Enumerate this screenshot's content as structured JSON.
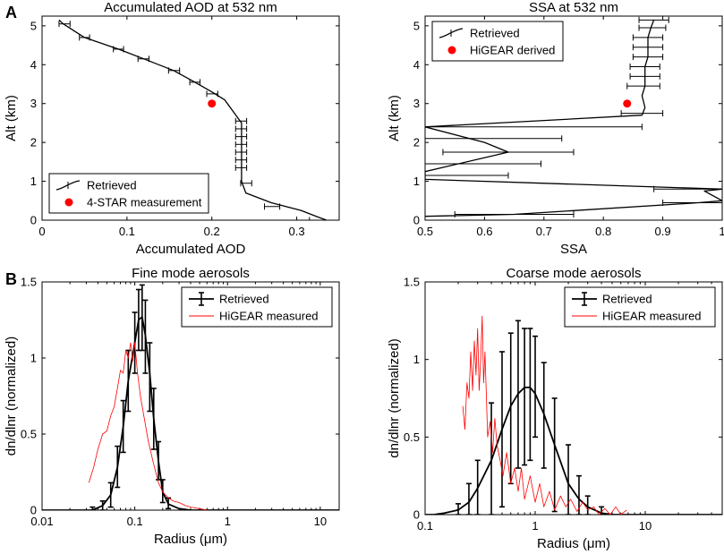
{
  "figure_labels": {
    "a": "A",
    "b": "B"
  },
  "colors": {
    "retrieved": "#000000",
    "measured": "#ff0000"
  },
  "chart_data": [
    {
      "id": "aod",
      "type": "line",
      "title": "Accumulated AOD at 532 nm",
      "xlabel": "Accumulated AOD",
      "ylabel": "Alt (km)",
      "xscale": "linear",
      "xlim": [
        0,
        0.35
      ],
      "ylim": [
        0,
        5.25
      ],
      "xticks": [
        0,
        0.1,
        0.2,
        0.3
      ],
      "xtick_labels": [
        "0",
        "0.1",
        "0.2",
        "0.3"
      ],
      "yticks": [
        0,
        1,
        2,
        3,
        4,
        5
      ],
      "ytick_labels": [
        "0",
        "1",
        "2",
        "3",
        "4",
        "5"
      ],
      "legend": {
        "position": "bottom-left",
        "entries": [
          "Retrieved",
          "4-STAR measurement"
        ]
      },
      "series": [
        {
          "name": "Retrieved",
          "kind": "line-hbars",
          "color": "#000000",
          "x": [
            0.02,
            0.025,
            0.05,
            0.09,
            0.12,
            0.155,
            0.18,
            0.2,
            0.215,
            0.225,
            0.235,
            0.235,
            0.235,
            0.235,
            0.235,
            0.235,
            0.24,
            0.27,
            0.305,
            0.325,
            0.335
          ],
          "y": [
            5.15,
            5.05,
            4.7,
            4.4,
            4.15,
            3.85,
            3.55,
            3.3,
            3.1,
            2.8,
            2.5,
            2.2,
            1.9,
            1.6,
            1.3,
            1.0,
            0.7,
            0.45,
            0.25,
            0.08,
            0.0
          ],
          "err_x": [
            [
              0.02,
              0.033
            ],
            [
              0.044,
              0.056
            ],
            [
              0.084,
              0.096
            ],
            [
              0.113,
              0.126
            ],
            [
              0.149,
              0.162
            ],
            [
              0.174,
              0.186
            ],
            [
              0.194,
              0.207
            ],
            [
              0.228,
              0.241
            ],
            [
              0.228,
              0.241
            ],
            [
              0.228,
              0.241
            ],
            [
              0.228,
              0.241
            ],
            [
              0.228,
              0.241
            ],
            [
              0.228,
              0.241
            ],
            [
              0.228,
              0.241
            ],
            [
              0.234,
              0.247
            ],
            [
              0.262,
              0.28
            ],
            [
              0.315,
              0.35
            ]
          ],
          "err_y": [
            5.05,
            4.7,
            4.4,
            4.15,
            3.85,
            3.55,
            3.25,
            2.55,
            2.35,
            2.15,
            1.95,
            1.75,
            1.55,
            1.35,
            0.95,
            0.35,
            0.0
          ]
        },
        {
          "name": "4-STAR measurement",
          "kind": "point",
          "color": "#ff0000",
          "x": [
            0.2
          ],
          "y": [
            3.0
          ]
        }
      ]
    },
    {
      "id": "ssa",
      "type": "line",
      "title": "SSA at 532 nm",
      "xlabel": "SSA",
      "ylabel": "Alt (km)",
      "xscale": "linear",
      "xlim": [
        0.5,
        1.0
      ],
      "ylim": [
        0,
        5.25
      ],
      "xticks": [
        0.5,
        0.6,
        0.7,
        0.8,
        0.9,
        1.0
      ],
      "xtick_labels": [
        "0.5",
        "0.6",
        "0.7",
        "0.8",
        "0.9",
        "1"
      ],
      "yticks": [
        0,
        1,
        2,
        3,
        4,
        5
      ],
      "ytick_labels": [
        "0",
        "1",
        "2",
        "3",
        "4",
        "5"
      ],
      "legend": {
        "position": "top-left",
        "entries": [
          "Retrieved",
          "HiGEAR derived"
        ]
      },
      "series": [
        {
          "name": "Retrieved",
          "kind": "line-hbars",
          "color": "#000000",
          "x": [
            0.885,
            0.88,
            0.875,
            0.875,
            0.875,
            0.87,
            0.87,
            0.87,
            0.865,
            0.87,
            0.865,
            0.5,
            0.6,
            0.64,
            0.5,
            0.5,
            0.5,
            1.0,
            0.97,
            1.0,
            0.96,
            0.65,
            0.5
          ],
          "y": [
            5.15,
            4.95,
            4.7,
            4.45,
            4.2,
            3.95,
            3.7,
            3.45,
            3.2,
            2.9,
            2.7,
            2.4,
            2.0,
            1.75,
            1.25,
            1.1,
            1.05,
            0.8,
            0.75,
            0.5,
            0.45,
            0.15,
            0.1
          ],
          "err_x": [
            [
              0.86,
              0.91
            ],
            [
              0.86,
              0.905
            ],
            [
              0.85,
              0.9
            ],
            [
              0.85,
              0.9
            ],
            [
              0.85,
              0.9
            ],
            [
              0.845,
              0.895
            ],
            [
              0.845,
              0.895
            ],
            [
              0.84,
              0.895
            ],
            [
              0.83,
              0.9
            ],
            [
              0.5,
              0.865
            ],
            [
              0.5,
              0.73
            ],
            [
              0.53,
              0.75
            ],
            [
              0.5,
              0.695
            ],
            [
              0.5,
              0.64
            ],
            [
              0.885,
              1.0
            ],
            [
              0.9,
              1.0
            ],
            [
              0.55,
              0.75
            ]
          ],
          "err_y": [
            5.15,
            4.95,
            4.7,
            4.45,
            4.2,
            3.95,
            3.7,
            3.45,
            2.75,
            2.4,
            2.1,
            1.75,
            1.45,
            1.15,
            0.8,
            0.45,
            0.15
          ]
        },
        {
          "name": "HiGEAR derived",
          "kind": "point",
          "color": "#ff0000",
          "x": [
            0.84
          ],
          "y": [
            3.0
          ]
        }
      ]
    },
    {
      "id": "fine",
      "type": "line",
      "title": "Fine mode aerosols",
      "xlabel": "Radius (μm)",
      "ylabel": "dn/dlnr (normalized)",
      "xscale": "log",
      "xlim": [
        0.01,
        16
      ],
      "ylim": [
        0,
        1.5
      ],
      "xticks": [
        0.01,
        0.1,
        1,
        10
      ],
      "xtick_labels": [
        "0.01",
        "0.1",
        "1",
        "10"
      ],
      "yticks": [
        0,
        0.5,
        1,
        1.5
      ],
      "ytick_labels": [
        "0",
        "0.5",
        "1",
        "1.5"
      ],
      "legend": {
        "position": "top-right",
        "entries": [
          "Retrieved",
          "HiGEAR measured"
        ]
      },
      "series": [
        {
          "name": "Retrieved",
          "kind": "line-errbars",
          "color": "#000000",
          "x": [
            0.01,
            0.035,
            0.045,
            0.055,
            0.065,
            0.075,
            0.085,
            0.1,
            0.11,
            0.12,
            0.13,
            0.145,
            0.16,
            0.18,
            0.2,
            0.23,
            0.3,
            0.4,
            16
          ],
          "y": [
            0,
            0.0,
            0.03,
            0.1,
            0.28,
            0.55,
            0.85,
            1.1,
            1.25,
            1.27,
            1.15,
            0.9,
            0.6,
            0.32,
            0.12,
            0.04,
            0.01,
            0.0,
            0
          ],
          "err_points": [
            0.035,
            0.045,
            0.055,
            0.065,
            0.075,
            0.085,
            0.1,
            0.11,
            0.12,
            0.13,
            0.145,
            0.16,
            0.18,
            0.2,
            0.23
          ],
          "err_lo": [
            0.0,
            0.0,
            0.02,
            0.15,
            0.38,
            0.65,
            0.9,
            1.05,
            1.05,
            0.9,
            0.65,
            0.4,
            0.2,
            0.05,
            0.01
          ],
          "err_hi": [
            0.02,
            0.06,
            0.18,
            0.42,
            0.72,
            1.05,
            1.3,
            1.45,
            1.48,
            1.38,
            1.1,
            0.8,
            0.45,
            0.2,
            0.08
          ]
        },
        {
          "name": "HiGEAR measured",
          "kind": "line",
          "color": "#ff0000",
          "x": [
            0.032,
            0.036,
            0.04,
            0.045,
            0.05,
            0.055,
            0.06,
            0.065,
            0.07,
            0.075,
            0.08,
            0.085,
            0.09,
            0.095,
            0.1,
            0.107,
            0.115,
            0.125,
            0.14,
            0.16,
            0.18,
            0.2,
            0.23,
            0.26,
            0.3,
            0.35,
            0.4,
            0.5,
            0.6
          ],
          "y": [
            0.18,
            0.28,
            0.4,
            0.5,
            0.52,
            0.62,
            0.68,
            0.8,
            0.92,
            0.9,
            1.05,
            1.0,
            1.1,
            0.98,
            1.1,
            0.9,
            0.75,
            0.62,
            0.45,
            0.3,
            0.18,
            0.12,
            0.08,
            0.06,
            0.05,
            0.03,
            0.02,
            0.01,
            0.0
          ]
        }
      ]
    },
    {
      "id": "coarse",
      "type": "line",
      "title": "Coarse mode aerosols",
      "xlabel": "Radius (μm)",
      "ylabel": "dn/dlnr (normalized)",
      "xscale": "log",
      "xlim": [
        0.1,
        50
      ],
      "ylim": [
        0,
        1.5
      ],
      "xticks": [
        0.1,
        1,
        10
      ],
      "xtick_labels": [
        "0.1",
        "1",
        "10"
      ],
      "yticks": [
        0,
        0.5,
        1,
        1.5
      ],
      "ytick_labels": [
        "0",
        "0.5",
        "1",
        "1.5"
      ],
      "legend": {
        "position": "top-right",
        "entries": [
          "Retrieved",
          "HiGEAR measured"
        ]
      },
      "series": [
        {
          "name": "Retrieved",
          "kind": "line-errbars",
          "color": "#000000",
          "x": [
            0.1,
            0.12,
            0.15,
            0.2,
            0.25,
            0.3,
            0.4,
            0.5,
            0.6,
            0.7,
            0.8,
            0.9,
            1.0,
            1.2,
            1.5,
            2.0,
            2.5,
            3.0,
            4.0,
            5.0,
            50
          ],
          "y": [
            0,
            0.0,
            0.01,
            0.03,
            0.08,
            0.17,
            0.35,
            0.55,
            0.7,
            0.78,
            0.82,
            0.82,
            0.78,
            0.65,
            0.45,
            0.2,
            0.1,
            0.05,
            0.01,
            0.0,
            0
          ],
          "err_points": [
            0.2,
            0.25,
            0.3,
            0.4,
            0.5,
            0.6,
            0.7,
            0.8,
            0.9,
            1.0,
            1.2,
            1.5,
            2.0,
            2.5,
            3.0,
            4.0
          ],
          "err_lo": [
            0.0,
            0.0,
            0.0,
            0.0,
            0.05,
            0.2,
            0.3,
            0.32,
            0.35,
            0.5,
            0.3,
            0.02,
            0.0,
            0.0,
            0.0,
            0.0
          ],
          "err_hi": [
            0.07,
            0.2,
            0.35,
            0.72,
            1.05,
            1.17,
            1.25,
            1.2,
            1.2,
            1.15,
            0.98,
            0.75,
            0.45,
            0.25,
            0.12,
            0.05
          ]
        },
        {
          "name": "HiGEAR measured",
          "kind": "line",
          "color": "#ff0000",
          "x": [
            0.22,
            0.23,
            0.24,
            0.25,
            0.26,
            0.27,
            0.28,
            0.29,
            0.3,
            0.31,
            0.32,
            0.33,
            0.34,
            0.35,
            0.37,
            0.39,
            0.41,
            0.43,
            0.45,
            0.48,
            0.51,
            0.55,
            0.6,
            0.65,
            0.7,
            0.75,
            0.8,
            0.9,
            1.0,
            1.1,
            1.2,
            1.35,
            1.5,
            1.7,
            1.9,
            2.1,
            2.4,
            2.7,
            3.0,
            3.4,
            3.8,
            4.3,
            4.8,
            5.4,
            6.0,
            6.8
          ],
          "y": [
            0.7,
            0.55,
            0.85,
            0.75,
            1.05,
            0.8,
            1.12,
            0.9,
            1.2,
            0.8,
            1.0,
            1.28,
            0.85,
            1.05,
            0.5,
            0.6,
            0.4,
            0.62,
            0.45,
            0.35,
            0.25,
            0.4,
            0.2,
            0.3,
            0.15,
            0.3,
            0.1,
            0.25,
            0.08,
            0.2,
            0.05,
            0.15,
            0.03,
            0.12,
            0.05,
            0.1,
            0.02,
            0.08,
            0.03,
            0.05,
            0.0,
            0.04,
            0.0,
            0.05,
            0.0,
            0.03
          ]
        }
      ]
    }
  ]
}
